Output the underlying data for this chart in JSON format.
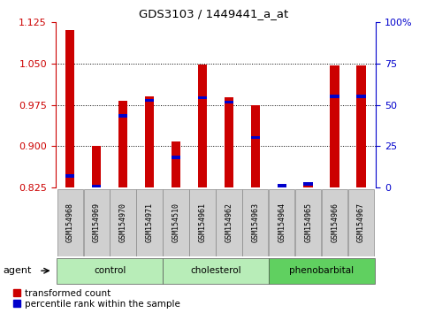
{
  "title": "GDS3103 / 1449441_a_at",
  "samples": [
    "GSM154968",
    "GSM154969",
    "GSM154970",
    "GSM154971",
    "GSM154510",
    "GSM154961",
    "GSM154962",
    "GSM154963",
    "GSM154964",
    "GSM154965",
    "GSM154966",
    "GSM154967"
  ],
  "red_values": [
    1.11,
    0.9,
    0.983,
    0.99,
    0.908,
    1.048,
    0.988,
    0.974,
    0.832,
    0.836,
    1.046,
    1.047
  ],
  "blue_values": [
    0.847,
    0.828,
    0.955,
    0.983,
    0.88,
    0.988,
    0.98,
    0.916,
    0.829,
    0.832,
    0.99,
    0.99
  ],
  "ylim_left": [
    0.825,
    1.125
  ],
  "ylim_right": [
    0,
    100
  ],
  "yticks_left": [
    0.825,
    0.9,
    0.975,
    1.05,
    1.125
  ],
  "yticks_right": [
    0,
    25,
    50,
    75,
    100
  ],
  "groups": [
    {
      "label": "control",
      "indices": [
        0,
        1,
        2,
        3
      ],
      "color": "#b8edb8"
    },
    {
      "label": "cholesterol",
      "indices": [
        4,
        5,
        6,
        7
      ],
      "color": "#b8edb8"
    },
    {
      "label": "phenobarbital",
      "indices": [
        8,
        9,
        10,
        11
      ],
      "color": "#60d060"
    }
  ],
  "bar_width": 0.35,
  "red_color": "#cc0000",
  "blue_color": "#0000cc",
  "bg_color": "#ffffff",
  "tick_bg": "#d0d0d0",
  "agent_label": "agent",
  "legend_red": "transformed count",
  "legend_blue": "percentile rank within the sample",
  "grid_yticks": [
    0.9,
    0.975,
    1.05
  ]
}
